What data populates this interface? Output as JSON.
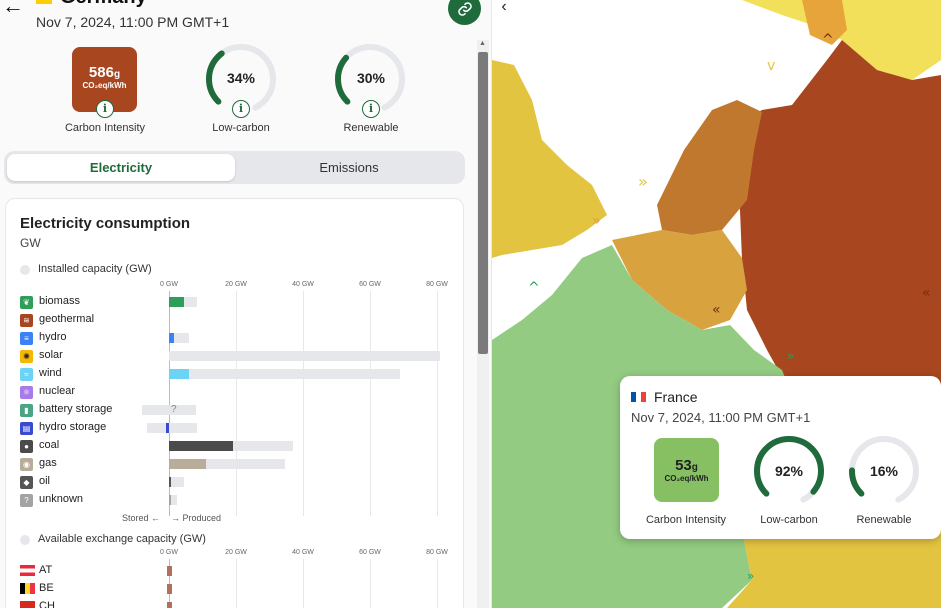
{
  "zone": {
    "name": "Germany",
    "datetime": "Nov 7, 2024, 11:00 PM GMT+1",
    "carbon_intensity_value": "586",
    "carbon_intensity_unit_g": "g",
    "carbon_intensity_unit": "CO₂eq/kWh",
    "carbon_intensity_label": "Carbon Intensity",
    "low_carbon_pct": 34,
    "low_carbon_text": "34%",
    "low_carbon_label": "Low-carbon",
    "renewable_pct": 30,
    "renewable_text": "30%",
    "renewable_label": "Renewable",
    "ci_color": "#a8461f"
  },
  "tabs": [
    {
      "label": "Electricity",
      "active": true
    },
    {
      "label": "Emissions",
      "active": false
    }
  ],
  "chart_data": {
    "type": "bar",
    "title": "Electricity consumption",
    "unit": "GW",
    "legend_installed": "Installed capacity (GW)",
    "legend_exchange": "Available exchange capacity (GW)",
    "axis_ticks": [
      "0 GW",
      "20 GW",
      "40 GW",
      "60 GW",
      "80 GW"
    ],
    "xlim": [
      0,
      80
    ],
    "stored_label": "Stored",
    "produced_label": "Produced",
    "sources": [
      {
        "name": "biomass",
        "icon": "leaf-icon",
        "color": "#2e9e5b",
        "produced": 4.5,
        "capacity": 8.5
      },
      {
        "name": "geothermal",
        "icon": "heat-icon",
        "color": "#a8461f",
        "produced": 0,
        "capacity": 0
      },
      {
        "name": "hydro",
        "icon": "water-icon",
        "color": "#3b82f6",
        "produced": 1.5,
        "capacity": 6
      },
      {
        "name": "solar",
        "icon": "sun-icon",
        "color": "#f5b800",
        "produced": 0,
        "capacity": 81
      },
      {
        "name": "wind",
        "icon": "wind-icon",
        "color": "#6dd3f5",
        "produced": 6,
        "capacity": 69
      },
      {
        "name": "nuclear",
        "icon": "atom-icon",
        "color": "#a77be8",
        "produced": 0,
        "capacity": 0
      },
      {
        "name": "battery storage",
        "icon": "battery-icon",
        "color": "#4aa583",
        "produced": 0,
        "capacity": 8,
        "stored_capacity": 8,
        "unknown_marker": "?"
      },
      {
        "name": "hydro storage",
        "icon": "hydro-storage-icon",
        "color": "#3949d0",
        "produced": -1,
        "capacity": 8.5,
        "stored_capacity": 6.5
      },
      {
        "name": "coal",
        "icon": "coal-icon",
        "color": "#4b4b4b",
        "produced": 19,
        "capacity": 37
      },
      {
        "name": "gas",
        "icon": "gas-icon",
        "color": "#b8ad9b",
        "produced": 11,
        "capacity": 34.5
      },
      {
        "name": "oil",
        "icon": "oil-icon",
        "color": "#555555",
        "produced": 0.3,
        "capacity": 4.5
      },
      {
        "name": "unknown",
        "icon": "unknown-icon",
        "color": "#a3a3a3",
        "produced": 0.5,
        "capacity": 2.5
      }
    ],
    "exchange": [
      {
        "name": "AT",
        "value": 1.5
      },
      {
        "name": "BE",
        "value": 1.5
      },
      {
        "name": "CH",
        "value": 1.5
      }
    ]
  },
  "tooltip": {
    "country": "France",
    "datetime": "Nov 7, 2024, 11:00 PM GMT+1",
    "carbon_intensity_value": "53",
    "carbon_intensity_unit_g": "g",
    "carbon_intensity_unit": "CO₂eq/kWh",
    "carbon_intensity_label": "Carbon Intensity",
    "low_carbon_pct": 92,
    "low_carbon_text": "92%",
    "low_carbon_label": "Low-carbon",
    "renewable_pct": 16,
    "renewable_text": "16%",
    "renewable_label": "Renewable",
    "ci_color": "#86c062"
  },
  "colors": {
    "accent": "#1f6b3b",
    "map_sea": "#ffffff",
    "map_green": "#93cb82",
    "map_brown": "#a8461f",
    "map_yellow": "#e3c441",
    "map_orange": "#c0782f"
  }
}
